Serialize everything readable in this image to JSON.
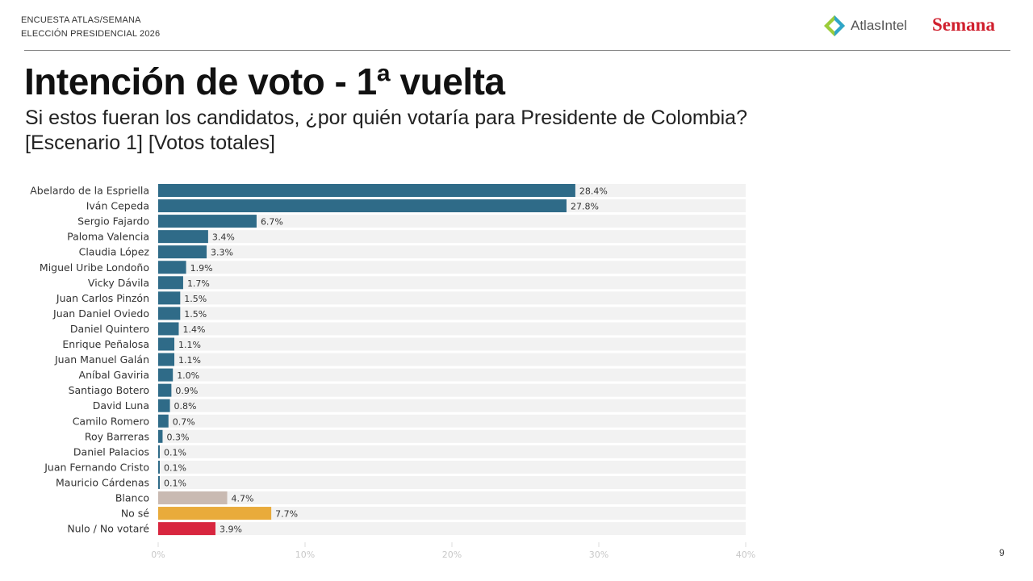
{
  "header": {
    "line1": "ENCUESTA ATLAS/SEMANA",
    "line2": "ELECCIÓN PRESIDENCIAL 2026",
    "logo_atlas": "AtlasIntel",
    "logo_semana": "Semana"
  },
  "title": "Intención de voto - 1ª vuelta",
  "subtitle1": "Si estos fueran los candidatos, ¿por quién votaría para Presidente de Colombia?",
  "subtitle2": "[Escenario 1] [Votos totales]",
  "page_number": "9",
  "colors": {
    "candidate": "#2f6b88",
    "blanco": "#c9bab2",
    "nose": "#e9ab3b",
    "nulo": "#d8263f",
    "track": "#f2f2f2"
  },
  "chart_data": {
    "type": "bar",
    "orientation": "horizontal",
    "xlim": [
      0,
      40
    ],
    "xticks": [
      "0%",
      "10%",
      "20%",
      "30%",
      "40%"
    ],
    "grid": false,
    "categories": [
      "Abelardo de la Espriella",
      "Iván Cepeda",
      "Sergio Fajardo",
      "Paloma Valencia",
      "Claudia López",
      "Miguel Uribe Londoño",
      "Vicky Dávila",
      "Juan Carlos Pinzón",
      "Juan Daniel Oviedo",
      "Daniel Quintero",
      "Enrique Peñalosa",
      "Juan Manuel Galán",
      "Aníbal Gaviria",
      "Santiago Botero",
      "David Luna",
      "Camilo Romero",
      "Roy Barreras",
      "Daniel Palacios",
      "Juan Fernando Cristo",
      "Mauricio Cárdenas",
      "Blanco",
      "No sé",
      "Nulo / No votaré"
    ],
    "values": [
      28.4,
      27.8,
      6.7,
      3.4,
      3.3,
      1.9,
      1.7,
      1.5,
      1.5,
      1.4,
      1.1,
      1.1,
      1.0,
      0.9,
      0.8,
      0.7,
      0.3,
      0.1,
      0.1,
      0.1,
      4.7,
      7.7,
      3.9
    ],
    "labels": [
      "28.4%",
      "27.8%",
      "6.7%",
      "3.4%",
      "3.3%",
      "1.9%",
      "1.7%",
      "1.5%",
      "1.5%",
      "1.4%",
      "1.1%",
      "1.1%",
      "1.0%",
      "0.9%",
      "0.8%",
      "0.7%",
      "0.3%",
      "0.1%",
      "0.1%",
      "0.1%",
      "4.7%",
      "7.7%",
      "3.9%"
    ]
  }
}
